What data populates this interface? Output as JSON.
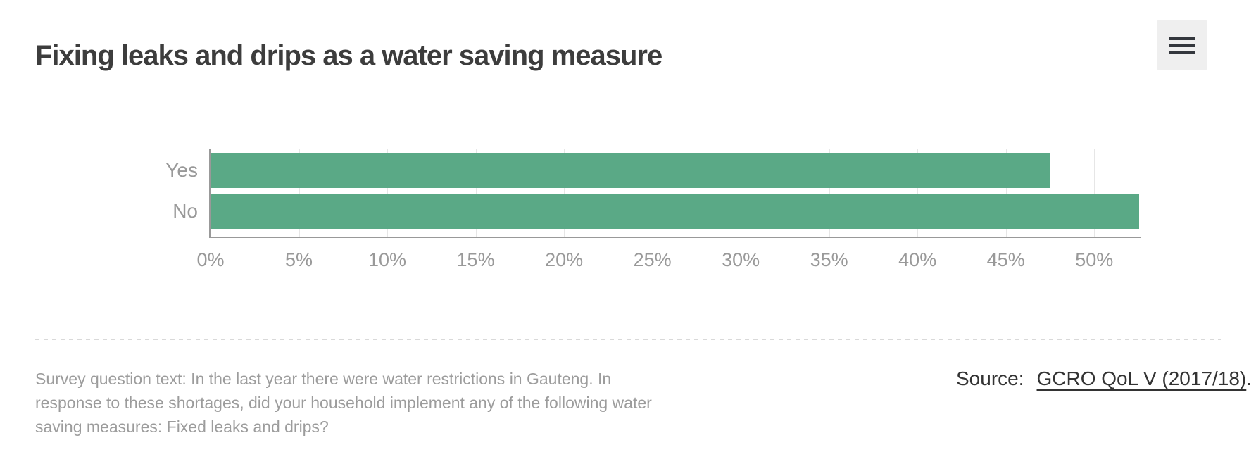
{
  "header": {
    "title": "Fixing leaks and drips as a water saving measure"
  },
  "chart_data": {
    "type": "bar",
    "orientation": "horizontal",
    "title": "Fixing leaks and drips as a water saving measure",
    "categories": [
      "Yes",
      "No"
    ],
    "values": [
      47.5,
      52.5
    ],
    "unit": "%",
    "x_ticks": [
      "0%",
      "5%",
      "10%",
      "15%",
      "20%",
      "25%",
      "30%",
      "35%",
      "40%",
      "45%",
      "50%"
    ],
    "x_tick_values": [
      0,
      5,
      10,
      15,
      20,
      25,
      30,
      35,
      40,
      45,
      50
    ],
    "xlim": [
      0,
      52.5
    ],
    "xlabel": "",
    "ylabel": "",
    "grid": true,
    "legend": false,
    "bar_color": "#5aa986"
  },
  "footer": {
    "survey_lines": [
      "Survey question text: In the last year there were water restrictions in Gauteng. In",
      "response to these shortages, did your household implement any of the following water",
      "saving measures: Fixed leaks and drips?"
    ],
    "source_label": "Source:",
    "source_link_text": "GCRO QoL V (2017/18)",
    "source_suffix": "."
  },
  "colors": {
    "bar_green": "#5aa986",
    "axis_line": "#999999",
    "grid_line": "#e6e6e6",
    "label_gray": "#999999",
    "title_dark": "#3d3d3d",
    "survey_gray": "#9c9c9c",
    "source_dark": "#333333",
    "menu_background": "#efefef",
    "menu_icon": "#33373d",
    "divider": "#d9d9d9"
  }
}
